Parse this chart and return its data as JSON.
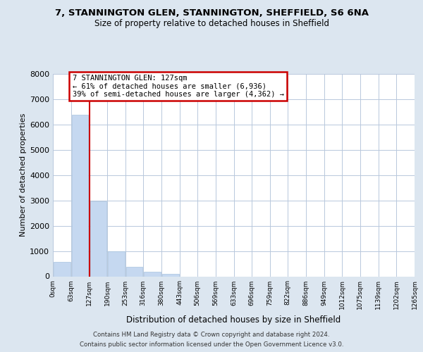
{
  "title": "7, STANNINGTON GLEN, STANNINGTON, SHEFFIELD, S6 6NA",
  "subtitle": "Size of property relative to detached houses in Sheffield",
  "xlabel": "Distribution of detached houses by size in Sheffield",
  "ylabel": "Number of detached properties",
  "bin_edges": [
    0,
    63,
    127,
    190,
    253,
    316,
    380,
    443,
    506,
    569,
    633,
    696,
    759,
    822,
    886,
    949,
    1012,
    1075,
    1139,
    1202,
    1265
  ],
  "bin_labels": [
    "0sqm",
    "63sqm",
    "127sqm",
    "190sqm",
    "253sqm",
    "316sqm",
    "380sqm",
    "443sqm",
    "506sqm",
    "569sqm",
    "633sqm",
    "696sqm",
    "759sqm",
    "822sqm",
    "886sqm",
    "949sqm",
    "1012sqm",
    "1075sqm",
    "1139sqm",
    "1202sqm",
    "1265sqm"
  ],
  "bar_heights": [
    560,
    6400,
    2950,
    1000,
    380,
    190,
    90,
    0,
    0,
    0,
    0,
    0,
    0,
    0,
    0,
    0,
    0,
    0,
    0,
    0
  ],
  "bar_color": "#c5d8f0",
  "bar_edge_color": "#a8c4e0",
  "property_line_x": 127,
  "property_line_color": "#cc0000",
  "annotation_text_line1": "7 STANNINGTON GLEN: 127sqm",
  "annotation_text_line2": "← 61% of detached houses are smaller (6,936)",
  "annotation_text_line3": "39% of semi-detached houses are larger (4,362) →",
  "annotation_box_color": "#cc0000",
  "ylim": [
    0,
    8000
  ],
  "yticks": [
    0,
    1000,
    2000,
    3000,
    4000,
    5000,
    6000,
    7000,
    8000
  ],
  "bg_color": "#dce6f0",
  "plot_bg_color": "#ffffff",
  "grid_color": "#b8c8dc",
  "footer_line1": "Contains HM Land Registry data © Crown copyright and database right 2024.",
  "footer_line2": "Contains public sector information licensed under the Open Government Licence v3.0."
}
